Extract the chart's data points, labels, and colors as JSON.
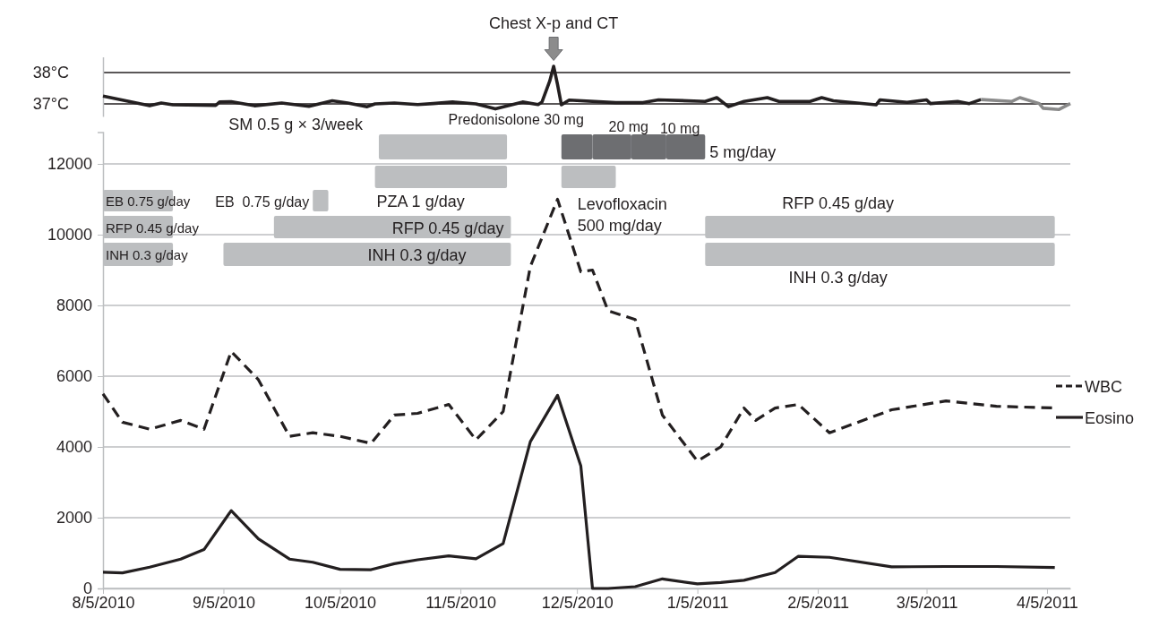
{
  "chart_data": [
    {
      "type": "line",
      "xlim": [
        "2010-08-05",
        "2011-04-11"
      ],
      "ylim": [
        36.6,
        38.5
      ],
      "yticks": [
        {
          "value": 37,
          "label": "37°C"
        },
        {
          "value": 38,
          "label": "38°C"
        }
      ],
      "grid": "y",
      "tick_labels": "y",
      "annotations": [
        "Chest X-p and CT"
      ],
      "series": [
        {
          "color": "#231f20",
          "x": [
            "2010-08-05",
            "2010-08-17",
            "2010-08-20",
            "2010-08-23",
            "2010-09-03",
            "2010-09-04",
            "2010-09-07",
            "2010-09-13",
            "2010-09-20",
            "2010-09-27",
            "2010-10-03",
            "2010-10-07",
            "2010-10-12",
            "2010-10-14",
            "2010-10-19",
            "2010-10-25",
            "2010-10-29",
            "2010-11-03",
            "2010-11-09",
            "2010-11-14",
            "2010-11-21",
            "2010-11-25",
            "2010-11-26",
            "2010-11-28",
            "2010-11-29",
            "2010-11-30",
            "2010-12-01",
            "2010-12-03",
            "2010-12-15",
            "2010-12-22",
            "2010-12-26",
            "2011-01-07",
            "2011-01-10",
            "2011-01-13",
            "2011-01-17",
            "2011-01-23",
            "2011-01-26",
            "2011-02-03",
            "2011-02-06",
            "2011-02-09",
            "2011-02-20",
            "2011-02-21",
            "2011-02-28",
            "2011-03-05",
            "2011-03-06",
            "2011-03-13",
            "2011-03-16",
            "2011-03-19"
          ],
          "values": [
            37.25,
            36.94,
            37.03,
            36.97,
            36.95,
            37.06,
            37.07,
            36.94,
            37.03,
            36.92,
            37.1,
            37.03,
            36.91,
            37.0,
            37.03,
            36.98,
            37.01,
            37.06,
            37.0,
            36.84,
            37.06,
            36.98,
            37.06,
            37.73,
            38.2,
            37.62,
            36.97,
            37.12,
            37.04,
            37.04,
            37.13,
            37.08,
            37.2,
            36.91,
            37.08,
            37.2,
            37.08,
            37.08,
            37.2,
            37.1,
            36.97,
            37.13,
            37.05,
            37.13,
            37.01,
            37.08,
            37.01,
            37.14
          ]
        },
        {
          "color": "#8a8a8a",
          "x": [
            "2011-03-19",
            "2011-03-27",
            "2011-03-29",
            "2011-04-03",
            "2011-04-04",
            "2011-04-08",
            "2011-04-11"
          ],
          "values": [
            37.14,
            37.08,
            37.2,
            37.01,
            36.86,
            36.82,
            37.01
          ]
        }
      ]
    },
    {
      "type": "line",
      "xlim": [
        "2010-08-05",
        "2011-04-11"
      ],
      "ylim": [
        0,
        12900
      ],
      "yticks": [
        0,
        2000,
        4000,
        6000,
        8000,
        10000,
        12000
      ],
      "xticks": [
        {
          "value": "2010-08-05",
          "label": "8/5/2010"
        },
        {
          "value": "2010-09-05",
          "label": "9/5/2010"
        },
        {
          "value": "2010-10-05",
          "label": "10/5/2010"
        },
        {
          "value": "2010-11-05",
          "label": "11/5/2010"
        },
        {
          "value": "2010-12-05",
          "label": "12/5/2010"
        },
        {
          "value": "2011-01-05",
          "label": "1/5/2011"
        },
        {
          "value": "2011-02-05",
          "label": "2/5/2011"
        },
        {
          "value": "2011-03-05",
          "label": "3/5/2011"
        },
        {
          "value": "2011-04-05",
          "label": "4/5/2011"
        }
      ],
      "grid": "y",
      "legend": "right",
      "bands": [
        {
          "axis": "x",
          "from": "2010-10-15",
          "to": "2010-11-17",
          "label": "SM 0.5 g × 3/week",
          "color": "#bcbec0"
        },
        {
          "axis": "x",
          "from": "2010-10-14",
          "to": "2010-11-17",
          "label": "PZA 1 g/day",
          "color": "#bcbec0"
        },
        {
          "axis": "x",
          "from": "2010-08-05",
          "to": "2010-08-23",
          "label": "EB 0.75 g/day",
          "color": "#bcbec0"
        },
        {
          "axis": "x",
          "from": "2010-08-05",
          "to": "2010-08-23",
          "label": "RFP 0.45 g/day",
          "color": "#bcbec0"
        },
        {
          "axis": "x",
          "from": "2010-08-05",
          "to": "2010-08-23",
          "label": "INH 0.3 g/day",
          "color": "#bcbec0"
        },
        {
          "axis": "x",
          "from": "2010-09-28",
          "to": "2010-10-02",
          "label": "EB  0.75 g/day",
          "color": "#bcbec0"
        },
        {
          "axis": "x",
          "from": "2010-09-18",
          "to": "2010-11-18",
          "label": "RFP 0.45 g/day",
          "color": "#bcbec0"
        },
        {
          "axis": "x",
          "from": "2010-09-05",
          "to": "2010-11-18",
          "label": "INH 0.3 g/day",
          "color": "#bcbec0"
        },
        {
          "axis": "x",
          "from": "2010-12-01",
          "to": "2010-12-09",
          "label": "Predonisolone 30 mg",
          "color": "#6d6e71"
        },
        {
          "axis": "x",
          "from": "2010-12-09",
          "to": "2010-12-19",
          "label": "20 mg",
          "color": "#6d6e71"
        },
        {
          "axis": "x",
          "from": "2010-12-19",
          "to": "2010-12-28",
          "label": "10 mg",
          "color": "#6d6e71"
        },
        {
          "axis": "x",
          "from": "2010-12-28",
          "to": "2011-01-07",
          "label": "5 mg/day",
          "color": "#6d6e71"
        },
        {
          "axis": "x",
          "from": "2010-12-01",
          "to": "2010-12-15",
          "label": "Levofloxacin 500 mg/day",
          "color": "#bcbec0"
        },
        {
          "axis": "x",
          "from": "2011-01-07",
          "to": "2011-04-07",
          "label": "RFP 0.45 g/day",
          "color": "#bcbec0"
        },
        {
          "axis": "x",
          "from": "2011-01-07",
          "to": "2011-04-07",
          "label": "INH 0.3 g/day",
          "color": "#bcbec0"
        }
      ],
      "series": [
        {
          "name": "WBC",
          "color": "#231f20",
          "line_style": "dashed",
          "x": [
            "2010-08-05",
            "2010-08-10",
            "2010-08-17",
            "2010-08-25",
            "2010-08-31",
            "2010-09-07",
            "2010-09-14",
            "2010-09-22",
            "2010-09-28",
            "2010-10-05",
            "2010-10-13",
            "2010-10-19",
            "2010-10-25",
            "2010-11-02",
            "2010-11-09",
            "2010-11-16",
            "2010-11-23",
            "2010-11-30",
            "2010-12-06",
            "2010-12-09",
            "2010-12-13",
            "2010-12-20",
            "2010-12-27",
            "2011-01-05",
            "2011-01-11",
            "2011-01-17",
            "2011-01-20",
            "2011-01-25",
            "2011-01-31",
            "2011-02-08",
            "2011-02-24",
            "2011-03-10",
            "2011-03-23",
            "2011-04-07"
          ],
          "values": [
            5500,
            4700,
            4500,
            4750,
            4500,
            6700,
            5900,
            4300,
            4400,
            4300,
            4100,
            4900,
            4950,
            5200,
            4200,
            5000,
            9100,
            11000,
            8950,
            9000,
            7850,
            7600,
            4900,
            3600,
            4000,
            5100,
            4750,
            5100,
            5200,
            4400,
            5050,
            5300,
            5150,
            5100
          ]
        },
        {
          "name": "Eosino",
          "color": "#231f20",
          "line_style": "solid",
          "x": [
            "2010-08-05",
            "2010-08-10",
            "2010-08-17",
            "2010-08-25",
            "2010-08-31",
            "2010-09-07",
            "2010-09-14",
            "2010-09-22",
            "2010-09-28",
            "2010-10-05",
            "2010-10-13",
            "2010-10-19",
            "2010-10-25",
            "2010-11-02",
            "2010-11-09",
            "2010-11-16",
            "2010-11-23",
            "2010-11-30",
            "2010-12-06",
            "2010-12-09",
            "2010-12-13",
            "2010-12-20",
            "2010-12-27",
            "2011-01-05",
            "2011-01-11",
            "2011-01-17",
            "2011-01-25",
            "2011-01-31",
            "2011-02-08",
            "2011-02-24",
            "2011-03-10",
            "2011-03-23",
            "2011-04-07"
          ],
          "values": [
            460,
            440,
            600,
            830,
            1100,
            2200,
            1400,
            830,
            740,
            540,
            530,
            700,
            810,
            920,
            840,
            1270,
            4150,
            5460,
            3460,
            0,
            0,
            50,
            270,
            130,
            170,
            230,
            450,
            910,
            880,
            610,
            620,
            620,
            590
          ]
        }
      ]
    }
  ]
}
